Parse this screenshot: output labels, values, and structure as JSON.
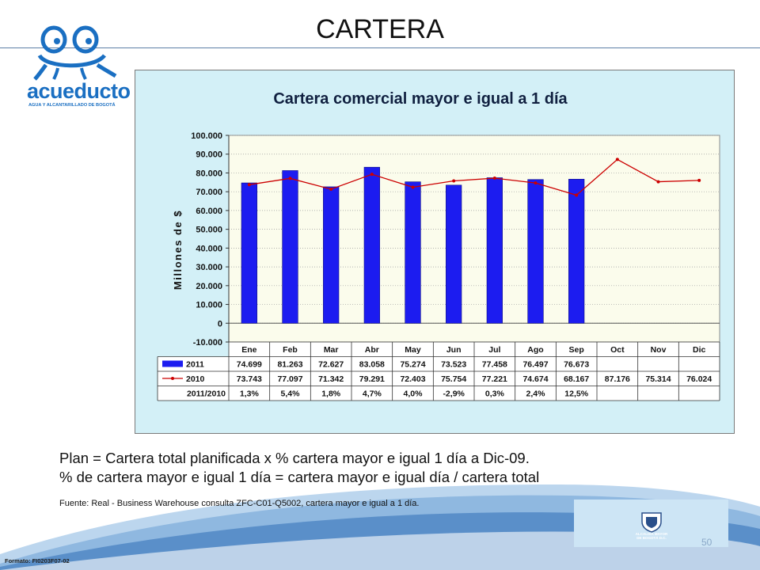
{
  "slide": {
    "title": "CARTERA",
    "logo_name": "acueducto",
    "logo_subtitle": "AGUA Y ALCANTARILLADO DE BOGOTÁ",
    "note1": "Plan = Cartera total planificada x % cartera mayor e igual 1 día a Dic-09.",
    "note2": "% de cartera mayor e igual 1 día = cartera mayor e igual  día / cartera total",
    "source": "Fuente: Real - Business Warehouse  consulta ZFC-C01-Q5002,  cartera mayor  e igual a 1 día.",
    "format_code": "Formato: FI0203F07-02",
    "seal_text": "ALCALDÍA MAYOR DE BOGOTÁ D.C.",
    "page_number": "50"
  },
  "colors": {
    "bar": "#1c1cf0",
    "line": "#cc0000",
    "plot_bg": "#fbfcec",
    "frame_bg": "#d3f0f7",
    "title_color": "#102040",
    "accent": "#1a6fc2"
  },
  "chart_data": {
    "type": "bar",
    "title": "Cartera comercial mayor e igual a 1 día",
    "ylabel": "Millones de $",
    "ylim": [
      -10000,
      100000
    ],
    "yticks": [
      -10000,
      0,
      10000,
      20000,
      30000,
      40000,
      50000,
      60000,
      70000,
      80000,
      90000,
      100000
    ],
    "ytick_labels": [
      "-10.000",
      "0",
      "10.000",
      "20.000",
      "30.000",
      "40.000",
      "50.000",
      "60.000",
      "70.000",
      "80.000",
      "90.000",
      "100.000"
    ],
    "grid": true,
    "categories": [
      "Ene",
      "Feb",
      "Mar",
      "Abr",
      "May",
      "Jun",
      "Jul",
      "Ago",
      "Sep",
      "Oct",
      "Nov",
      "Dic"
    ],
    "series": [
      {
        "name": "2011",
        "kind": "bar",
        "values": [
          74699,
          81263,
          72627,
          83058,
          75274,
          73523,
          77458,
          76497,
          76673,
          null,
          null,
          null
        ],
        "labels": [
          "74.699",
          "81.263",
          "72.627",
          "83.058",
          "75.274",
          "73.523",
          "77.458",
          "76.497",
          "76.673",
          "",
          "",
          ""
        ]
      },
      {
        "name": "2010",
        "kind": "line",
        "values": [
          73743,
          77097,
          71342,
          79291,
          72403,
          75754,
          77221,
          74674,
          68167,
          87176,
          75314,
          76024
        ],
        "labels": [
          "73.743",
          "77.097",
          "71.342",
          "79.291",
          "72.403",
          "75.754",
          "77.221",
          "74.674",
          "68.167",
          "87.176",
          "75.314",
          "76.024"
        ]
      }
    ],
    "ratio_row": {
      "name": "2011/2010",
      "labels": [
        "1,3%",
        "5,4%",
        "1,8%",
        "4,7%",
        "4,0%",
        "-2,9%",
        "0,3%",
        "2,4%",
        "12,5%",
        "",
        "",
        ""
      ]
    }
  }
}
